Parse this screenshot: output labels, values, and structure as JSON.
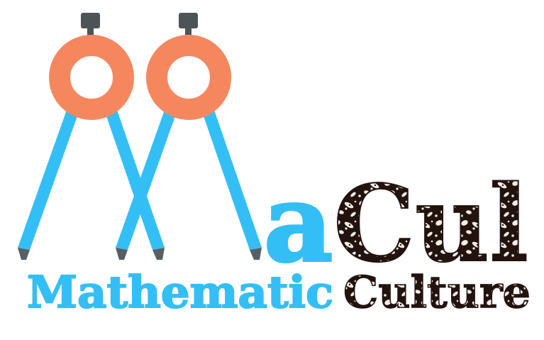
{
  "logo": {
    "big_letter_a": "a",
    "cul": "Cul",
    "mathematic": "Mathematic",
    "culture": "Culture"
  },
  "colors": {
    "blue": "#33bff5",
    "blue_dark": "#27aee6",
    "orange": "#f5875f",
    "handle": "#4d5458",
    "tip": "#585f63",
    "batik_dark": "#23130e",
    "batik_light": "#f3ede4",
    "background": "#ffffff"
  },
  "icons": [
    "compass-icon",
    "compass-icon"
  ]
}
